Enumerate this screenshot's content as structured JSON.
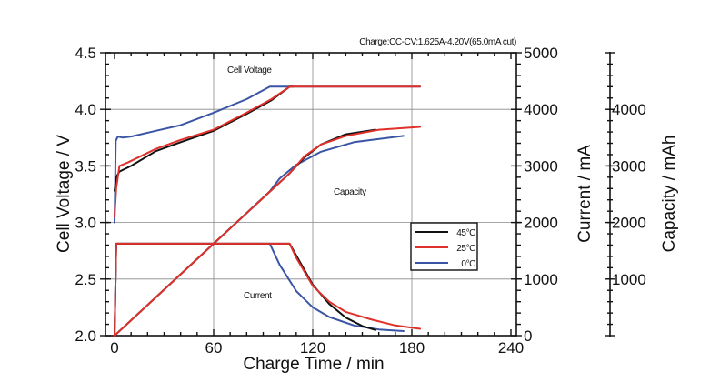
{
  "chart_data": {
    "type": "line",
    "subtitle": "Charge:CC-CV:1.625A-4.20V(65.0mA cut)",
    "xlabel": "Charge Time / min",
    "ylabel_left": "Cell Voltage / V",
    "ylabel_right": "Current / mA",
    "ylabel_right2": "Capacity / mAh",
    "xlim": [
      0,
      240
    ],
    "ylim_left": [
      2.0,
      4.5
    ],
    "ylim_right": [
      0,
      5000
    ],
    "ylim_right2": [
      0,
      5000
    ],
    "x_ticks": [
      "0",
      "60",
      "120",
      "180",
      "240"
    ],
    "y_left_ticks": [
      "2.0",
      "2.5",
      "3.0",
      "3.5",
      "4.0",
      "4.5"
    ],
    "y_right_ticks": [
      "0",
      "1000",
      "2000",
      "3000",
      "4000",
      "5000"
    ],
    "y_right2_ticks": [
      "1000",
      "2000",
      "3000",
      "4000"
    ],
    "grid": true,
    "legend": {
      "position": "center-right",
      "entries": [
        "45°C",
        "25°C",
        "0°C"
      ]
    },
    "annotations": {
      "voltage": "Cell Voltage",
      "capacity": "Capacity",
      "current": "Current"
    },
    "colors": {
      "45°C": "#111111",
      "25°C": "#e0302a",
      "0°C": "#3a55a4"
    },
    "series": [
      {
        "name": "45°C",
        "voltage": [
          [
            0,
            3.28
          ],
          [
            1,
            3.4
          ],
          [
            3,
            3.45
          ],
          [
            10,
            3.5
          ],
          [
            25,
            3.63
          ],
          [
            40,
            3.71
          ],
          [
            60,
            3.81
          ],
          [
            80,
            3.96
          ],
          [
            95,
            4.08
          ],
          [
            106,
            4.2
          ],
          [
            108,
            4.2
          ]
        ],
        "current": [
          [
            0,
            0
          ],
          [
            1,
            1625
          ],
          [
            106,
            1625
          ],
          [
            110,
            1420
          ],
          [
            120,
            900
          ],
          [
            130,
            560
          ],
          [
            140,
            320
          ],
          [
            150,
            170
          ],
          [
            158,
            100
          ]
        ],
        "capacity": [
          [
            0,
            0
          ],
          [
            60,
            1625
          ],
          [
            106,
            2870
          ],
          [
            115,
            3150
          ],
          [
            125,
            3380
          ],
          [
            140,
            3560
          ],
          [
            158,
            3640
          ]
        ]
      },
      {
        "name": "25°C",
        "voltage": [
          [
            0,
            3.05
          ],
          [
            1,
            3.3
          ],
          [
            3,
            3.5
          ],
          [
            8,
            3.53
          ],
          [
            25,
            3.65
          ],
          [
            40,
            3.73
          ],
          [
            60,
            3.82
          ],
          [
            80,
            3.97
          ],
          [
            95,
            4.09
          ],
          [
            106,
            4.2
          ],
          [
            185,
            4.2
          ]
        ],
        "current": [
          [
            0,
            0
          ],
          [
            1,
            1625
          ],
          [
            106,
            1625
          ],
          [
            110,
            1380
          ],
          [
            120,
            880
          ],
          [
            130,
            600
          ],
          [
            140,
            420
          ],
          [
            155,
            290
          ],
          [
            170,
            180
          ],
          [
            185,
            120
          ]
        ],
        "capacity": [
          [
            0,
            0
          ],
          [
            60,
            1625
          ],
          [
            106,
            2870
          ],
          [
            115,
            3170
          ],
          [
            125,
            3380
          ],
          [
            140,
            3530
          ],
          [
            160,
            3640
          ],
          [
            185,
            3690
          ]
        ]
      },
      {
        "name": "0°C",
        "voltage": [
          [
            0,
            3.0
          ],
          [
            0.7,
            3.72
          ],
          [
            2,
            3.76
          ],
          [
            5,
            3.75
          ],
          [
            10,
            3.76
          ],
          [
            25,
            3.81
          ],
          [
            40,
            3.86
          ],
          [
            60,
            3.97
          ],
          [
            80,
            4.09
          ],
          [
            94,
            4.2
          ],
          [
            185,
            4.2
          ]
        ],
        "current": [
          [
            0,
            0
          ],
          [
            1,
            1625
          ],
          [
            94,
            1625
          ],
          [
            100,
            1250
          ],
          [
            110,
            790
          ],
          [
            120,
            500
          ],
          [
            130,
            330
          ],
          [
            145,
            180
          ],
          [
            160,
            110
          ],
          [
            175,
            80
          ]
        ],
        "capacity": [
          [
            0,
            0
          ],
          [
            60,
            1625
          ],
          [
            94,
            2550
          ],
          [
            100,
            2780
          ],
          [
            110,
            3020
          ],
          [
            125,
            3250
          ],
          [
            145,
            3420
          ],
          [
            175,
            3530
          ]
        ]
      }
    ]
  }
}
